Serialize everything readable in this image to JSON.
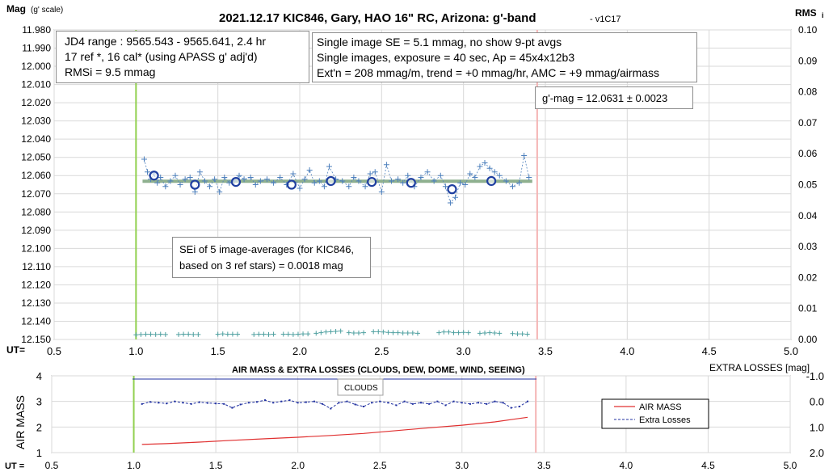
{
  "chart_data": [
    {
      "type": "scatter",
      "title": "2021.12.17 KIC846, Gary, HAO 16\" RC, Arizona: g'-band",
      "title_suffix": "- v1C17",
      "ylabel_left": "Mag",
      "ylabel_left_suffix": "(g' scale)",
      "ylabel_right": "RMS",
      "ylabel_right_suffix": "i",
      "xlabel": "UT=",
      "xlim": [
        0.5,
        5.0
      ],
      "xticks": [
        "0.5",
        "1.0",
        "1.5",
        "2.0",
        "2.5",
        "3.0",
        "3.5",
        "4.0",
        "4.5",
        "5.0"
      ],
      "ylim": [
        11.98,
        12.15
      ],
      "y_inverted": true,
      "yticks": [
        "11.980",
        "11.990",
        "12.000",
        "12.010",
        "12.020",
        "12.030",
        "12.040",
        "12.050",
        "12.060",
        "12.070",
        "12.080",
        "12.090",
        "12.100",
        "12.110",
        "12.120",
        "12.130",
        "12.140",
        "12.150"
      ],
      "ylim_right": [
        0.0,
        0.1
      ],
      "yticks_right": [
        "0.10",
        "0.09",
        "0.08",
        "0.07",
        "0.06",
        "0.05",
        "0.04",
        "0.03",
        "0.02",
        "0.01",
        "0.00"
      ],
      "vertical_lines": [
        {
          "x": 1.0,
          "color": "#92d050"
        },
        {
          "x": 3.45,
          "color": "#f4b4b4"
        }
      ],
      "fit_line": {
        "x": [
          1.04,
          3.42
        ],
        "y": [
          12.0631,
          12.0631
        ],
        "color": "#8fb08f"
      },
      "series": [
        {
          "style": "dashed-plus",
          "color": "#4f81bd",
          "x": [
            1.05,
            1.07,
            1.09,
            1.11,
            1.13,
            1.15,
            1.18,
            1.21,
            1.24,
            1.27,
            1.3,
            1.33,
            1.36,
            1.39,
            1.42,
            1.45,
            1.48,
            1.51,
            1.54,
            1.57,
            1.6,
            1.63,
            1.66,
            1.7,
            1.73,
            1.76,
            1.8,
            1.84,
            1.88,
            1.92,
            1.96,
            2.0,
            2.03,
            2.06,
            2.09,
            2.12,
            2.15,
            2.18,
            2.22,
            2.26,
            2.3,
            2.33,
            2.36,
            2.4,
            2.43,
            2.46,
            2.5,
            2.53,
            2.56,
            2.6,
            2.63,
            2.66,
            2.7,
            2.74,
            2.78,
            2.82,
            2.86,
            2.89,
            2.92,
            2.95,
            2.98,
            3.01,
            3.04,
            3.07,
            3.1,
            3.13,
            3.16,
            3.19,
            3.22,
            3.26,
            3.3,
            3.34,
            3.37,
            3.4
          ],
          "y": [
            12.051,
            12.058,
            12.062,
            12.059,
            12.064,
            12.061,
            12.066,
            12.063,
            12.06,
            12.065,
            12.062,
            12.061,
            12.069,
            12.058,
            12.063,
            12.066,
            12.062,
            12.069,
            12.061,
            12.064,
            12.063,
            12.06,
            12.062,
            12.061,
            12.065,
            12.063,
            12.062,
            12.064,
            12.061,
            12.065,
            12.059,
            12.067,
            12.062,
            12.057,
            12.064,
            12.063,
            12.066,
            12.055,
            12.062,
            12.063,
            12.066,
            12.061,
            12.063,
            12.066,
            12.059,
            12.058,
            12.069,
            12.054,
            12.063,
            12.062,
            12.064,
            12.06,
            12.066,
            12.061,
            12.058,
            12.063,
            12.06,
            12.066,
            12.075,
            12.072,
            12.064,
            12.065,
            12.059,
            12.061,
            12.055,
            12.053,
            12.056,
            12.058,
            12.06,
            12.063,
            12.066,
            12.064,
            12.049,
            12.061
          ]
        },
        {
          "style": "circle",
          "color": "#1f3fa0",
          "x": [
            1.11,
            1.36,
            1.61,
            1.95,
            2.19,
            2.44,
            2.68,
            2.93,
            3.17
          ],
          "y": [
            12.06,
            12.065,
            12.0635,
            12.065,
            12.063,
            12.0635,
            12.064,
            12.0675,
            12.063
          ]
        },
        {
          "style": "rms-plus",
          "color": "#4fa0a0",
          "x": [
            1.0,
            1.03,
            1.06,
            1.09,
            1.12,
            1.15,
            1.18,
            1.26,
            1.29,
            1.32,
            1.35,
            1.38,
            1.5,
            1.53,
            1.56,
            1.59,
            1.62,
            1.72,
            1.75,
            1.78,
            1.81,
            1.84,
            1.9,
            1.93,
            1.96,
            1.99,
            2.02,
            2.05,
            2.1,
            2.13,
            2.16,
            2.19,
            2.22,
            2.25,
            2.3,
            2.33,
            2.36,
            2.39,
            2.45,
            2.48,
            2.51,
            2.54,
            2.57,
            2.6,
            2.63,
            2.66,
            2.69,
            2.72,
            2.85,
            2.88,
            2.91,
            2.94,
            2.97,
            3.0,
            3.03,
            3.1,
            3.13,
            3.16,
            3.19,
            3.22,
            3.3,
            3.33,
            3.36,
            3.39
          ],
          "y": [
            0.0015,
            0.0016,
            0.0017,
            0.0017,
            0.0016,
            0.0017,
            0.0016,
            0.0016,
            0.0017,
            0.0017,
            0.0016,
            0.0016,
            0.0017,
            0.0018,
            0.0017,
            0.0017,
            0.0017,
            0.0016,
            0.0017,
            0.0017,
            0.0016,
            0.0017,
            0.0017,
            0.0017,
            0.0016,
            0.0017,
            0.0018,
            0.0018,
            0.002,
            0.0022,
            0.0024,
            0.0025,
            0.0026,
            0.0027,
            0.0022,
            0.0021,
            0.0021,
            0.0022,
            0.0025,
            0.0025,
            0.0024,
            0.0023,
            0.0022,
            0.0022,
            0.0021,
            0.0021,
            0.0021,
            0.002,
            0.0022,
            0.0024,
            0.0024,
            0.0022,
            0.0022,
            0.0023,
            0.0022,
            0.002,
            0.0021,
            0.0022,
            0.0021,
            0.002,
            0.0019,
            0.0018,
            0.0018,
            0.0017
          ]
        }
      ],
      "annotations": {
        "box1": [
          "JD4 range : 9565.543 - 9565.641,  2.4  hr",
          "17 ref *, 16 cal* (using APASS g' adj'd)",
          "RMSi = 9.5 mmag"
        ],
        "box2": [
          "Single image SE = 5.1 mmag, no show  9-pt avgs",
          "Single images, exposure = 40 sec, Ap = 45x4x12b3",
          "Ext'n = 208 mmag/m, trend = +0 mmag/hr, AMC = +9 mmag/airmass"
        ],
        "box3": [
          "g'-mag = 12.0631 ± 0.0023"
        ],
        "box4": [
          "SEi of 5 image-averages (for KIC846,",
          "based on 3 ref stars) = 0.0018 mag"
        ]
      }
    },
    {
      "type": "line",
      "title": "AIR MASS & EXTRA LOSSES (CLOUDS, DEW, DOME, WIND, SEEING)",
      "ylabel_left": "AIR MASS",
      "ylabel_right": "EXTRA LOSSES [mag]",
      "xlabel": "UT =",
      "xlim": [
        0.5,
        5.0
      ],
      "xticks": [
        "0.5",
        "1.0",
        "1.5",
        "2.0",
        "2.5",
        "3.0",
        "3.5",
        "4.0",
        "4.5",
        "5.0"
      ],
      "ylim": [
        1,
        4
      ],
      "yticks": [
        "4",
        "3",
        "2",
        "1"
      ],
      "ylim_right": [
        -1.0,
        2.0
      ],
      "yticks_right": [
        "-1.0",
        "0.0",
        "1.0",
        "2.0"
      ],
      "clouds_label": "CLOUDS",
      "legend": {
        "placement": "right",
        "entries": [
          "AIR MASS",
          "Extra Losses"
        ]
      },
      "vertical_lines": [
        {
          "x": 1.0,
          "color": "#92d050"
        },
        {
          "x": 3.45,
          "color": "#f4b4b4"
        }
      ],
      "series": [
        {
          "name": "AIR MASS",
          "color": "#e03030",
          "x": [
            1.05,
            1.2,
            1.4,
            1.6,
            1.8,
            2.0,
            2.2,
            2.4,
            2.6,
            2.8,
            3.0,
            3.2,
            3.4
          ],
          "y": [
            1.32,
            1.35,
            1.41,
            1.48,
            1.54,
            1.6,
            1.67,
            1.75,
            1.86,
            1.97,
            2.07,
            2.2,
            2.38
          ]
        },
        {
          "name": "Extra Losses",
          "color": "#2030a0",
          "x": [
            1.05,
            1.1,
            1.15,
            1.2,
            1.25,
            1.3,
            1.35,
            1.4,
            1.45,
            1.5,
            1.55,
            1.6,
            1.65,
            1.7,
            1.75,
            1.8,
            1.85,
            1.9,
            1.95,
            2.0,
            2.05,
            2.1,
            2.15,
            2.2,
            2.25,
            2.3,
            2.35,
            2.4,
            2.45,
            2.5,
            2.55,
            2.6,
            2.65,
            2.7,
            2.75,
            2.8,
            2.85,
            2.9,
            2.95,
            3.0,
            3.05,
            3.1,
            3.15,
            3.2,
            3.25,
            3.3,
            3.35,
            3.4
          ],
          "y": [
            0.1,
            0.02,
            0.05,
            0.08,
            0.0,
            0.05,
            0.1,
            0.03,
            0.06,
            0.08,
            0.1,
            0.25,
            0.12,
            0.05,
            0.02,
            -0.05,
            0.05,
            0.0,
            -0.05,
            0.05,
            0.03,
            0.0,
            0.1,
            0.28,
            0.05,
            0.0,
            0.12,
            0.2,
            0.05,
            0.0,
            0.05,
            0.15,
            0.0,
            0.1,
            0.05,
            0.1,
            0.0,
            0.15,
            0.0,
            0.05,
            0.1,
            0.05,
            0.1,
            0.0,
            0.05,
            0.25,
            0.2,
            0.0
          ]
        }
      ]
    }
  ]
}
